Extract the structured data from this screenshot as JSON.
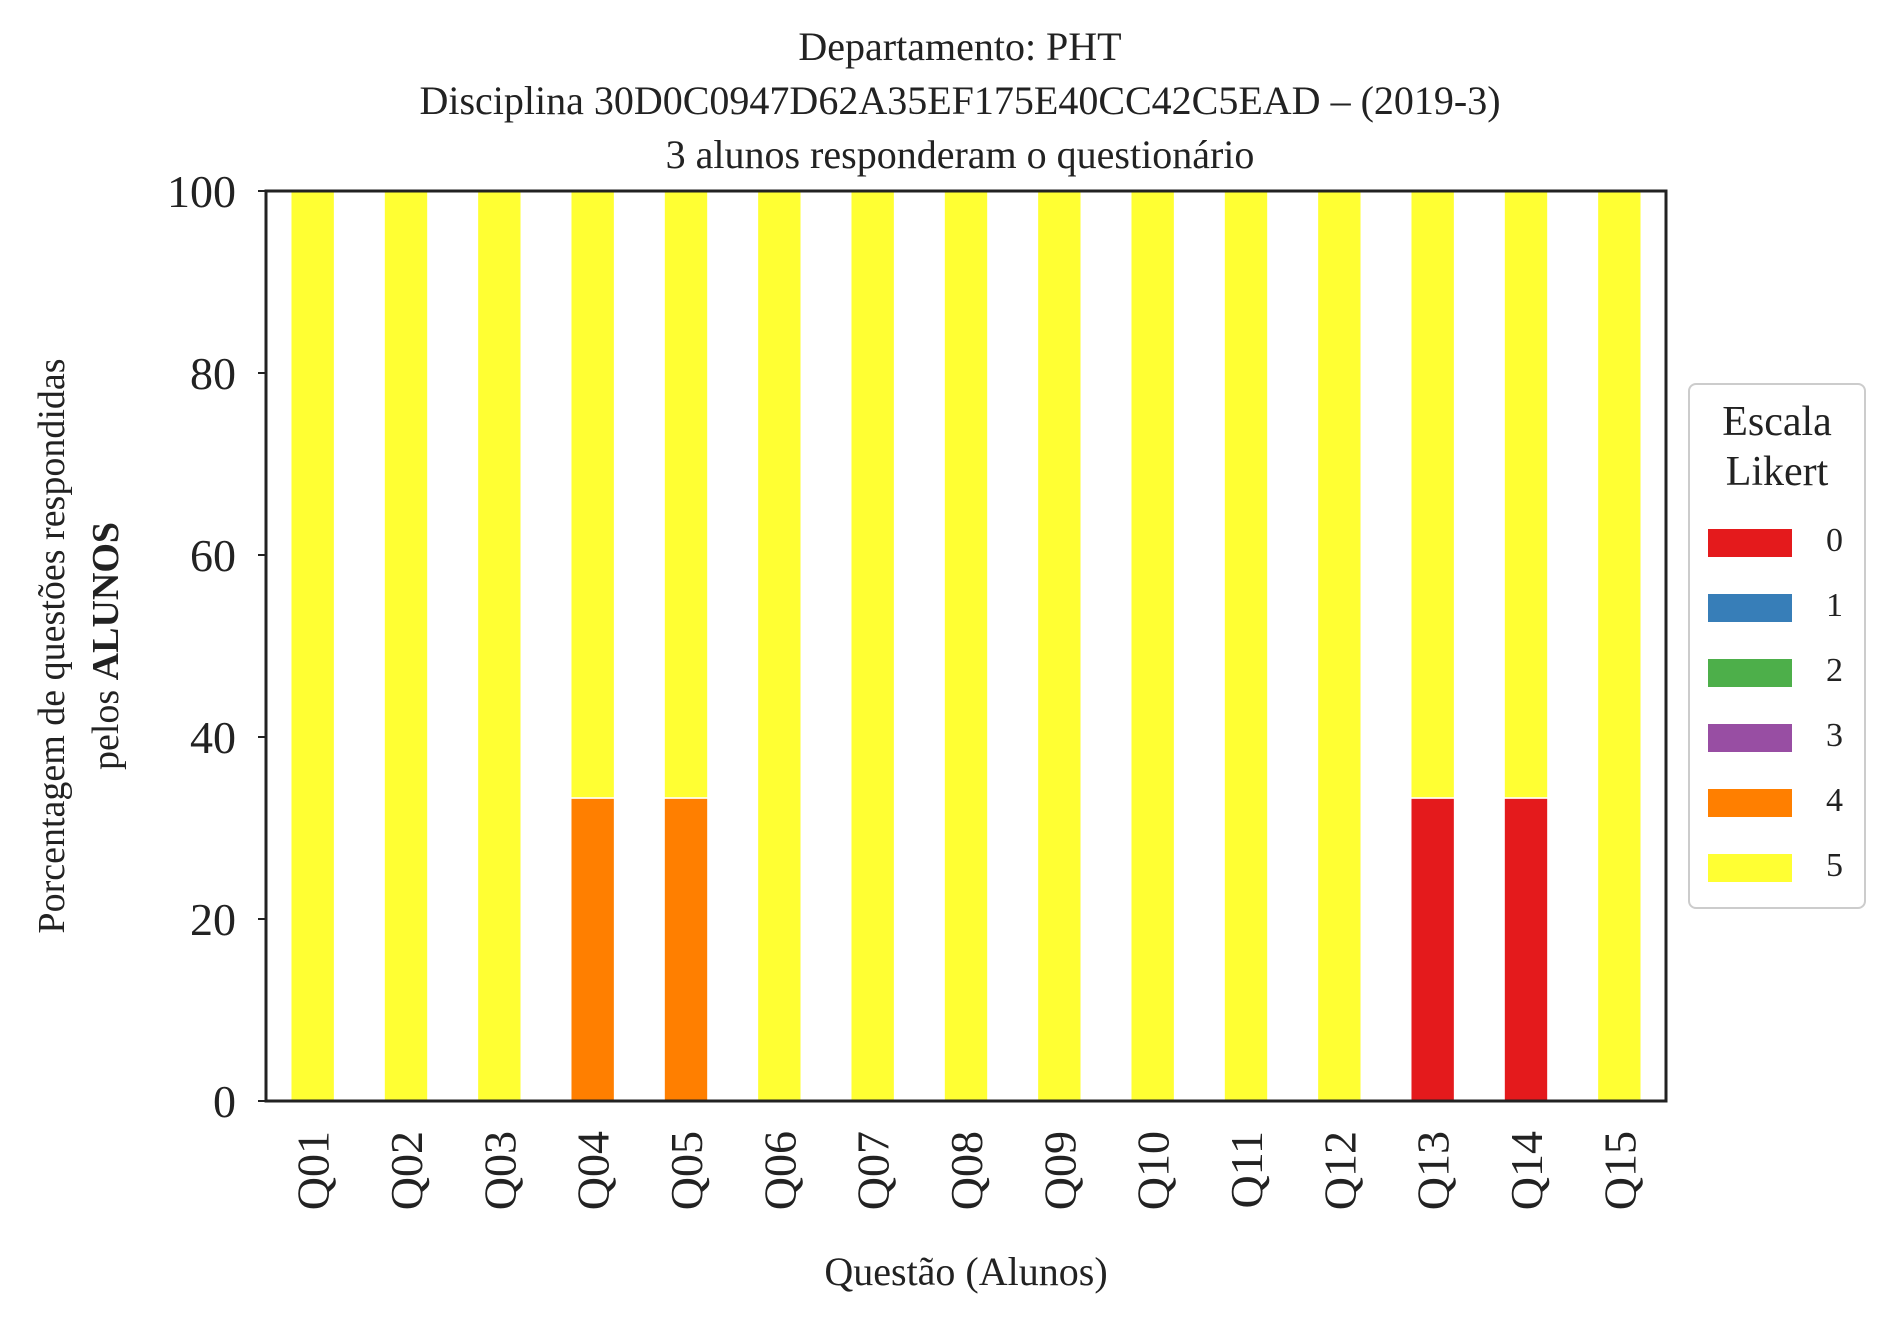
{
  "chart_data": {
    "type": "bar",
    "stacked": true,
    "title_lines": [
      "Departamento: PHT",
      "Disciplina 30D0C0947D62A35EF175E40CC42C5EAD – (2019-3)",
      "3 alunos responderam o questionário"
    ],
    "xlabel": "Questão (Alunos)",
    "ylabel_line1": "Porcentagem de questões respondidas",
    "ylabel_line2_prefix": "pelos ",
    "ylabel_line2_bold": "ALUNOS",
    "ylim": [
      0,
      100
    ],
    "yticks": [
      "0",
      "20",
      "40",
      "60",
      "80",
      "100"
    ],
    "categories": [
      "Q01",
      "Q02",
      "Q03",
      "Q04",
      "Q05",
      "Q06",
      "Q07",
      "Q08",
      "Q09",
      "Q10",
      "Q11",
      "Q12",
      "Q13",
      "Q14",
      "Q15"
    ],
    "series": [
      {
        "name": "0",
        "color": "#e41a1c",
        "values": [
          0,
          0,
          0,
          0,
          0,
          0,
          0,
          0,
          0,
          0,
          0,
          0,
          33.3,
          33.3,
          0
        ]
      },
      {
        "name": "1",
        "color": "#377eb8",
        "values": [
          0,
          0,
          0,
          0,
          0,
          0,
          0,
          0,
          0,
          0,
          0,
          0,
          0,
          0,
          0
        ]
      },
      {
        "name": "2",
        "color": "#4daf4a",
        "values": [
          0,
          0,
          0,
          0,
          0,
          0,
          0,
          0,
          0,
          0,
          0,
          0,
          0,
          0,
          0
        ]
      },
      {
        "name": "3",
        "color": "#984ea3",
        "values": [
          0,
          0,
          0,
          0,
          0,
          0,
          0,
          0,
          0,
          0,
          0,
          0,
          0,
          0,
          0
        ]
      },
      {
        "name": "4",
        "color": "#ff7f00",
        "values": [
          0,
          0,
          0,
          33.3,
          33.3,
          0,
          0,
          0,
          0,
          0,
          0,
          0,
          0,
          0,
          0
        ]
      },
      {
        "name": "5",
        "color": "#ffff33",
        "values": [
          100,
          100,
          100,
          66.7,
          66.7,
          100,
          100,
          100,
          100,
          100,
          100,
          100,
          66.7,
          66.7,
          100
        ]
      }
    ],
    "legend": {
      "title_lines": [
        "Escala",
        "Likert"
      ],
      "position": "right"
    },
    "grid": false
  }
}
